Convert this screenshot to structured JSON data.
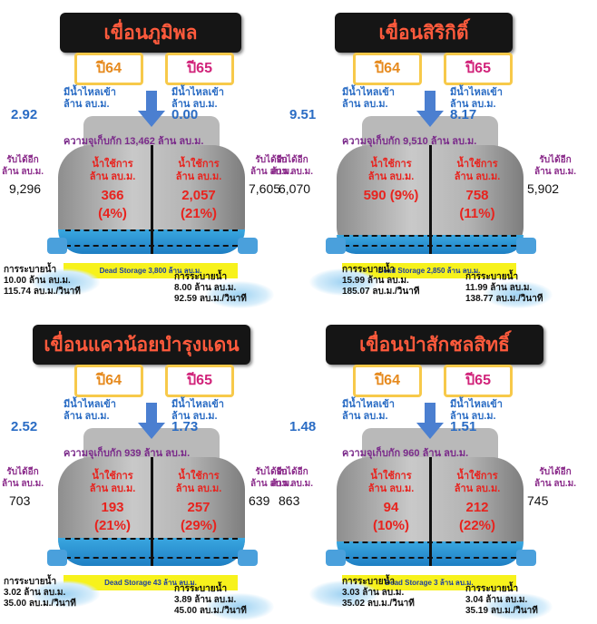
{
  "labels": {
    "year_a": "ปี64",
    "year_b": "ปี65",
    "inflow": "มีน้ำไหลเข้า",
    "inflow_unit": "ล้าน ลบ.ม.",
    "use_line1": "น้ำใช้การ",
    "use_line2": "ล้าน ลบ.ม.",
    "side_line1": "รับได้อีก",
    "side_line2": "ล้าน ลบ.ม.",
    "release": "การระบายน้ำ",
    "release_unit1": "ล้าน ลบ.ม.",
    "release_unit2": "ลบ.ม./วินาที"
  },
  "dams": [
    {
      "name": "เขื่อนภูมิพล",
      "inflow_64": "2.92",
      "inflow_65": "0.00",
      "capacity": "ความจุเก็บกัก 13,462 ล้าน ลบ.ม.",
      "usable_64": "366",
      "usable_64_pct": "(4%)",
      "usable_65": "2,057",
      "usable_65_pct": "(21%)",
      "room_64": "9,296",
      "room_65": "7,605",
      "dead_storage": "Dead Storage 3,800 ล้าน ลบ.ม.",
      "release_64_vol": "10.00",
      "release_64_rate": "115.74",
      "release_65_vol": "8.00",
      "release_65_rate": "92.59",
      "water_level_65": 0.21
    },
    {
      "name": "เขื่อนสิริกิติ์",
      "inflow_64": "9.51",
      "inflow_65": "8.17",
      "capacity": "ความจุเก็บกัก 9,510 ล้าน ลบ.ม.",
      "usable_64": "590 (9%)",
      "usable_64_pct": "",
      "usable_65": "758",
      "usable_65_pct": "(11%)",
      "room_64": "6,070",
      "room_65": "5,902",
      "dead_storage": "Dead Storage 2,850 ล้าน ลบ.ม.",
      "release_64_vol": "15.99",
      "release_64_rate": "185.07",
      "release_65_vol": "11.99",
      "release_65_rate": "138.77",
      "water_level_65": 0.11
    },
    {
      "name": "เขื่อนแควน้อยบำรุงแดน",
      "inflow_64": "2.52",
      "inflow_65": "1.73",
      "capacity": "ความจุเก็บกัก 939 ล้าน ลบ.ม.",
      "usable_64": "193",
      "usable_64_pct": "(21%)",
      "usable_65": "257",
      "usable_65_pct": "(29%)",
      "room_64": "703",
      "room_65": "639",
      "dead_storage": "Dead Storage 43 ล้าน ลบ.ม.",
      "release_64_vol": "3.02",
      "release_64_rate": "35.00",
      "release_65_vol": "3.89",
      "release_65_rate": "45.00",
      "water_level_65": 0.29
    },
    {
      "name": "เขื่อนป่าสักชลสิทธิ์",
      "inflow_64": "1.48",
      "inflow_65": "1.51",
      "capacity": "ความจุเก็บกัก 960 ล้าน ลบ.ม.",
      "usable_64": "94",
      "usable_64_pct": "(10%)",
      "usable_65": "212",
      "usable_65_pct": "(22%)",
      "room_64": "863",
      "room_65": "745",
      "dead_storage": "Dead Storage 3 ล้าน ลบ.ม.",
      "release_64_vol": "3.03",
      "release_64_rate": "35.02",
      "release_65_vol": "3.04",
      "release_65_rate": "35.19",
      "water_level_65": 0.22
    }
  ],
  "colors": {
    "title_bg": "#151515",
    "title_text": "#ff5a3c",
    "water": "#1e7fc4",
    "inflow_text": "#2a6cc4",
    "usable_text": "#e8231e",
    "dead_storage_bg": "#f7f21c"
  }
}
